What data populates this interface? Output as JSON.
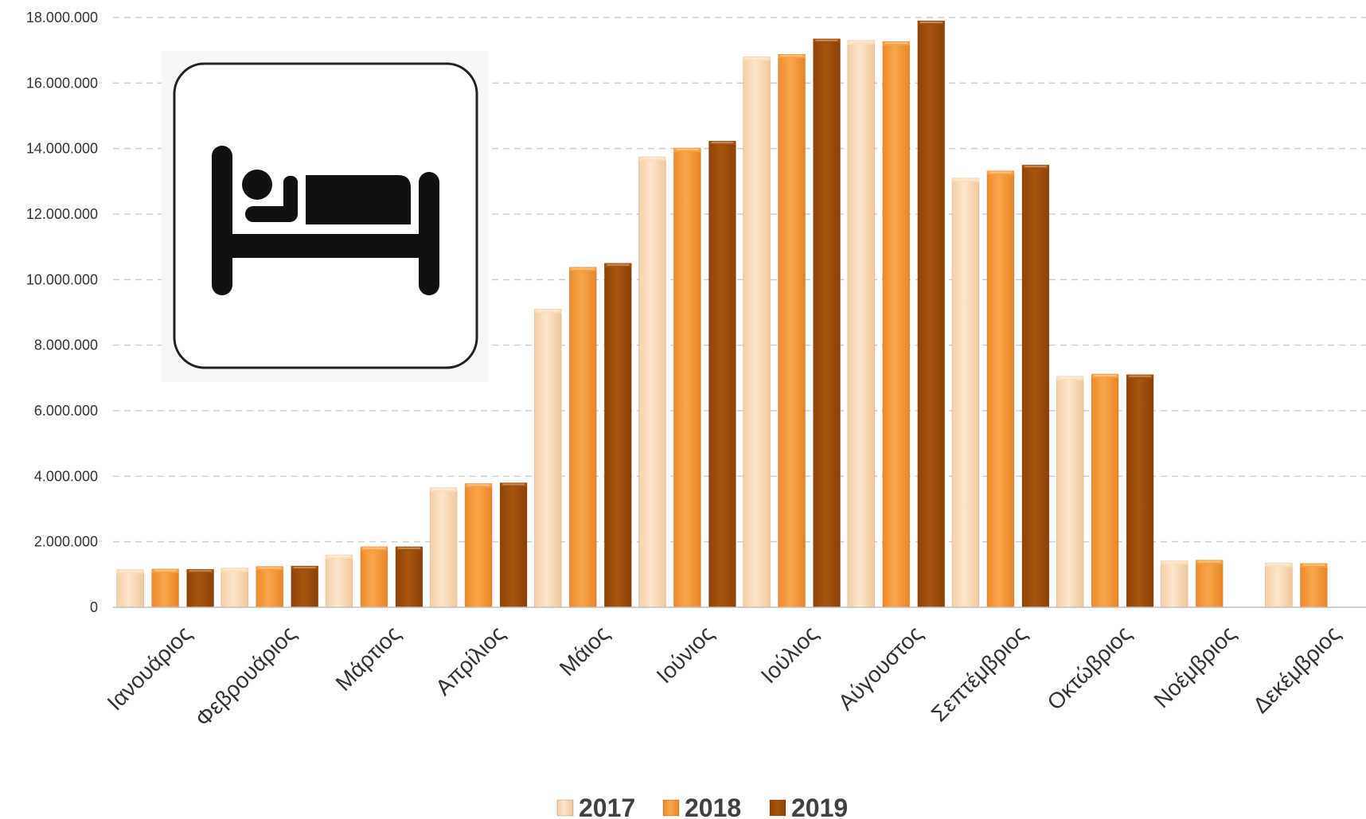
{
  "chart_data": {
    "type": "bar",
    "title": "",
    "xlabel": "",
    "ylabel": "",
    "ylim": [
      0,
      18000000
    ],
    "ytick_values": [
      0,
      2000000,
      4000000,
      6000000,
      8000000,
      10000000,
      12000000,
      14000000,
      16000000,
      18000000
    ],
    "ytick_labels": [
      "0",
      "2.000.000",
      "4.000.000",
      "6.000.000",
      "8.000.000",
      "10.000.000",
      "12.000.000",
      "14.000.000",
      "16.000.000",
      "18.000.000"
    ],
    "grid": "horizontal dashed",
    "legend_position": "bottom",
    "categories": [
      "Ιανουάριος",
      "Φεβρουάριος",
      "Μάρτιος",
      "Απρίλιος",
      "Μάιος",
      "Ιούνιος",
      "Ιούλιος",
      "Αύγουστος",
      "Σεπτέμβριος",
      "Οκτώβριος",
      "Νοέμβριος",
      "Δεκέμβριος"
    ],
    "series": [
      {
        "name": "2017",
        "color": "#FDDDB8",
        "values": [
          1150000,
          1200000,
          1600000,
          3650000,
          9100000,
          13750000,
          16800000,
          17300000,
          13100000,
          7050000,
          1420000,
          1350000
        ]
      },
      {
        "name": "2018",
        "color": "#F7A044",
        "values": [
          1170000,
          1250000,
          1850000,
          3780000,
          10380000,
          14020000,
          16880000,
          17270000,
          13320000,
          7120000,
          1440000,
          1340000
        ]
      },
      {
        "name": "2019",
        "color": "#A24F0C",
        "values": [
          1160000,
          1260000,
          1850000,
          3800000,
          10500000,
          14230000,
          17350000,
          17900000,
          13500000,
          7100000,
          null,
          null
        ]
      }
    ]
  },
  "icon": {
    "name": "bed-hotel-icon"
  }
}
